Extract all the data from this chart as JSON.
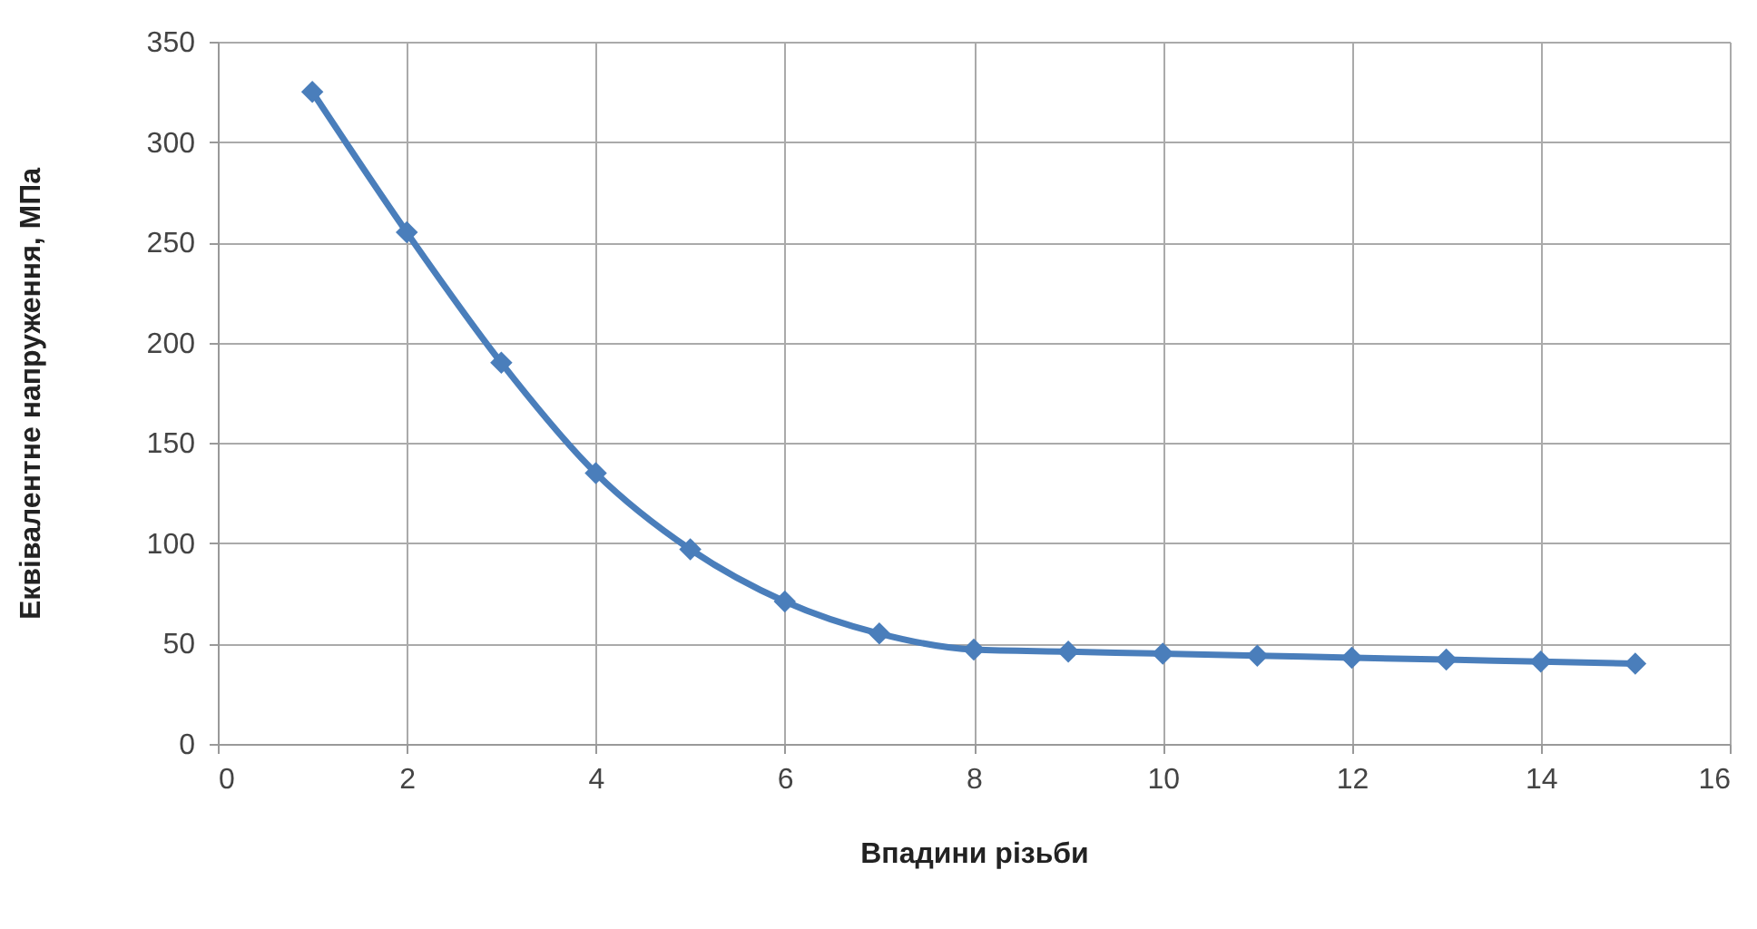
{
  "chart_data": {
    "type": "line",
    "xlabel": "Впадини різьби",
    "ylabel": "Еквівалентне напруження, МПа",
    "x": [
      1,
      2,
      3,
      4,
      5,
      6,
      7,
      8,
      9,
      10,
      11,
      12,
      13,
      14,
      15
    ],
    "series": [
      {
        "color": "#4a7ebb",
        "values": [
          325,
          255,
          190,
          135,
          97,
          71,
          55,
          47,
          46,
          45,
          44,
          43,
          42,
          41,
          40
        ]
      }
    ],
    "xlim": [
      0,
      16
    ],
    "xticks": [
      0,
      2,
      4,
      6,
      8,
      10,
      12,
      14,
      16
    ],
    "ylim": [
      0,
      350
    ],
    "yticks": [
      0,
      50,
      100,
      150,
      200,
      250,
      300,
      350
    ],
    "grid": true,
    "marker": "diamond",
    "line_style": "solid"
  }
}
